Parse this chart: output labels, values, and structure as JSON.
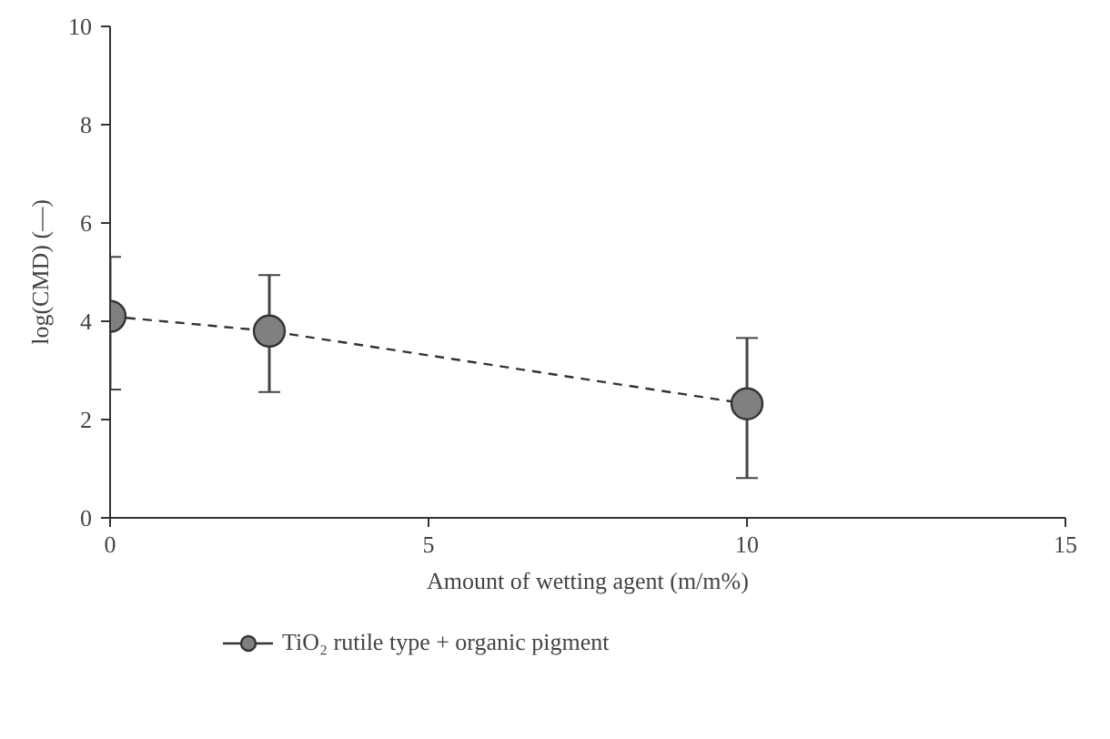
{
  "chart_data": {
    "type": "line",
    "xlabel": "Amount of wetting agent (m/m%)",
    "ylabel": "log(CMD) (—)",
    "x": [
      0,
      2.5,
      10
    ],
    "series": [
      {
        "name": "TiO₂ rutile type + organic pigment",
        "color": "#808080",
        "values": [
          4.1,
          3.8,
          2.32
        ],
        "errors": [
          [
            2.61,
            5.31
          ],
          [
            2.56,
            4.94
          ],
          [
            0.81,
            3.66
          ]
        ]
      }
    ],
    "xlim": [
      0,
      15
    ],
    "xticks": [
      0,
      5,
      10,
      15
    ],
    "ylim": [
      0,
      10
    ],
    "yticks": [
      0,
      2,
      4,
      6,
      8,
      10
    ],
    "grid": false,
    "legend": "bottom left",
    "marker": "circle",
    "line_style": "dashed"
  }
}
